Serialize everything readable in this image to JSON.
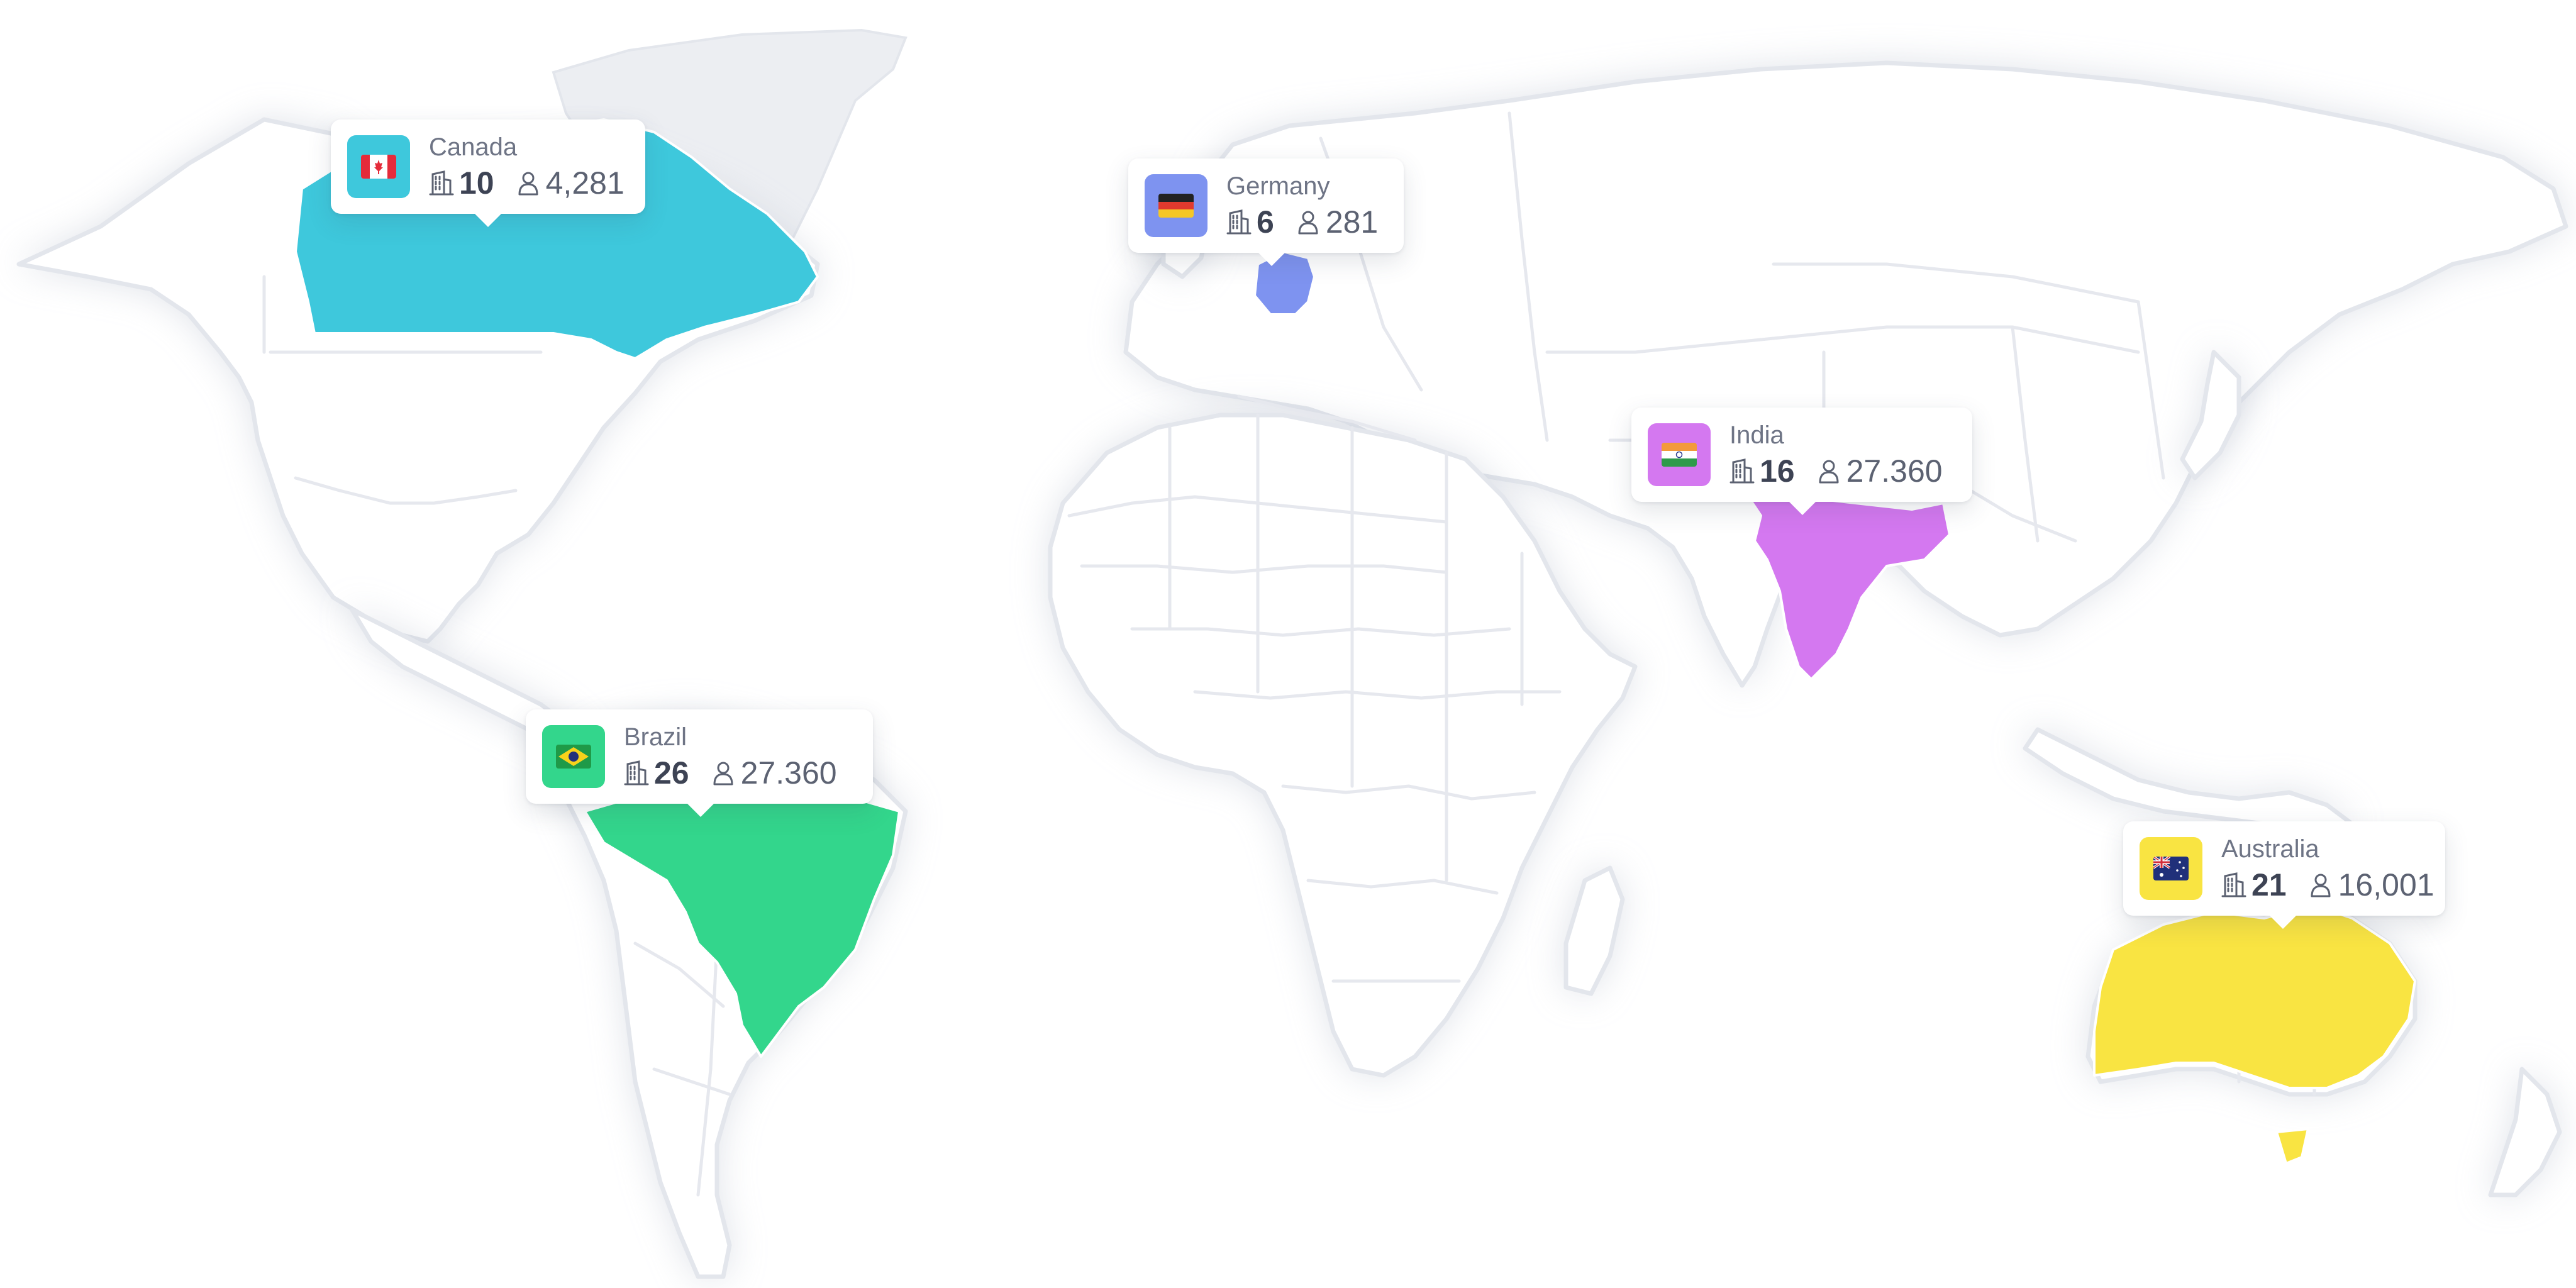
{
  "map": {
    "colors": {
      "land": "#ffffff",
      "land_border": "#e3e6ec",
      "background": "#ffffff"
    },
    "icons": {
      "sites": "office-building-icon",
      "users": "user-icon"
    }
  },
  "markers": [
    {
      "id": "canada",
      "country": "Canada",
      "sites": "10",
      "users": "4,281",
      "flag_icon": "canada-flag-icon",
      "color": "#3ec8dc"
    },
    {
      "id": "germany",
      "country": "Germany",
      "sites": "6",
      "users": "281",
      "flag_icon": "germany-flag-icon",
      "color": "#7e93f0"
    },
    {
      "id": "india",
      "country": "India",
      "sites": "16",
      "users": "27.360",
      "flag_icon": "india-flag-icon",
      "color": "#d478f0"
    },
    {
      "id": "brazil",
      "country": "Brazil",
      "sites": "26",
      "users": "27.360",
      "flag_icon": "brazil-flag-icon",
      "color": "#33d68c"
    },
    {
      "id": "australia",
      "country": "Australia",
      "sites": "21",
      "users": "16,001",
      "flag_icon": "australia-flag-icon",
      "color": "#f9e442"
    }
  ]
}
